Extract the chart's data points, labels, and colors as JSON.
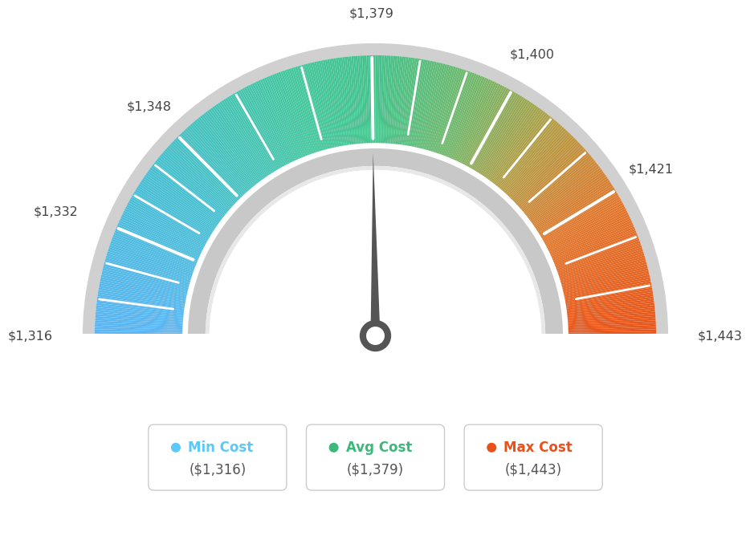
{
  "min_val": 1316,
  "max_val": 1443,
  "avg_val": 1379,
  "tick_labels": [
    "$1,316",
    "$1,332",
    "$1,348",
    "$1,379",
    "$1,400",
    "$1,421",
    "$1,443"
  ],
  "tick_values": [
    1316,
    1332,
    1348,
    1379,
    1400,
    1421,
    1443
  ],
  "background_color": "#ffffff",
  "legend_min_color": "#5bc8f5",
  "legend_avg_color": "#3db87a",
  "legend_max_color": "#e8521a",
  "needle_color": "#555555",
  "color_stops": [
    [
      0.0,
      [
        0.36,
        0.71,
        0.96
      ]
    ],
    [
      0.2,
      [
        0.28,
        0.75,
        0.82
      ]
    ],
    [
      0.4,
      [
        0.27,
        0.78,
        0.62
      ]
    ],
    [
      0.5,
      [
        0.27,
        0.76,
        0.55
      ]
    ],
    [
      0.62,
      [
        0.45,
        0.72,
        0.42
      ]
    ],
    [
      0.72,
      [
        0.7,
        0.62,
        0.28
      ]
    ],
    [
      0.84,
      [
        0.88,
        0.47,
        0.18
      ]
    ],
    [
      1.0,
      [
        0.91,
        0.33,
        0.1
      ]
    ]
  ]
}
